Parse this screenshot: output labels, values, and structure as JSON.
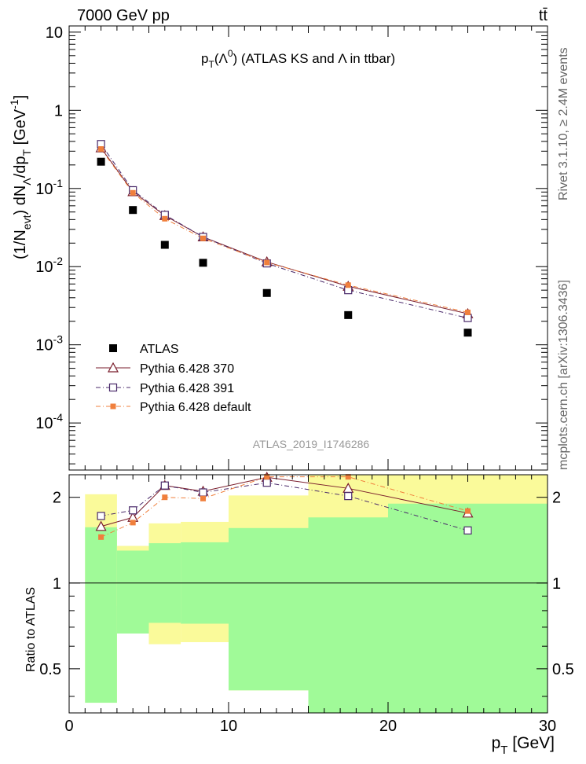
{
  "header": {
    "energy_label": "7000 GeV pp",
    "process_label": "tt̄",
    "title_main": "p",
    "title_sub": "T",
    "title_rest_a": "(Λ",
    "title_sup": "0",
    "title_rest_b": ") (ATLAS KS and Λ in ttbar)",
    "analysis_id": "ATLAS_2019_I1746286",
    "side_rivet": "Rivet 3.1.10, ≥ 2.4M events",
    "side_mcplots": "mcplots.cern.ch [arXiv:1306.3436]"
  },
  "axes": {
    "ylabel_upper_parts": [
      "(1/N",
      "evt",
      ") dN",
      "Λ",
      "/dp",
      "T",
      " [GeV",
      "-1",
      "]"
    ],
    "ylabel_lower": "Ratio to ATLAS",
    "xlabel_main": "p",
    "xlabel_sub": "T",
    "xlabel_unit": " [GeV]"
  },
  "chart_data": {
    "type": "scatter",
    "x_range": [
      0,
      30
    ],
    "x_ticks": [
      0,
      10,
      20,
      30
    ],
    "upper_y_scale": "log",
    "upper_y_range": [
      2.5e-05,
      12
    ],
    "upper_y_ticks": [
      {
        "value": 10,
        "label_base": "10",
        "label_exp": ""
      },
      {
        "value": 1,
        "label_base": "1",
        "label_exp": ""
      },
      {
        "value": 0.1,
        "label_base": "10",
        "label_exp": "-1"
      },
      {
        "value": 0.01,
        "label_base": "10",
        "label_exp": "-2"
      },
      {
        "value": 0.001,
        "label_base": "10",
        "label_exp": "-3"
      },
      {
        "value": 0.0001,
        "label_base": "10",
        "label_exp": "-4"
      }
    ],
    "lower_y_scale": "log",
    "lower_y_range": [
      0.35,
      2.4
    ],
    "lower_y_ticks": [
      {
        "value": 0.5,
        "label": "0.5"
      },
      {
        "value": 1,
        "label": "1"
      },
      {
        "value": 2,
        "label": "2"
      }
    ],
    "x": [
      2,
      4,
      6,
      8.4,
      12.4,
      17.5,
      25
    ],
    "bin_edges": [
      1,
      3,
      5,
      7,
      10,
      15,
      20,
      30
    ],
    "series": [
      {
        "name": "ATLAS",
        "style": "data",
        "color": "#000000",
        "values": [
          0.22,
          0.053,
          0.019,
          0.0112,
          0.0046,
          0.0024,
          0.00143
        ]
      },
      {
        "name": "Pythia 6.428 370",
        "style": "triangle-solid",
        "color": "#7a1e2c",
        "values": [
          0.33,
          0.091,
          0.045,
          0.024,
          0.0115,
          0.0056,
          0.0025
        ],
        "ratio": [
          1.58,
          1.7,
          2.2,
          2.1,
          2.35,
          2.15,
          1.76
        ]
      },
      {
        "name": "Pythia 6.428 391",
        "style": "open-square-dashdot",
        "color": "#4a2a6a",
        "values": [
          0.37,
          0.095,
          0.046,
          0.024,
          0.011,
          0.005,
          0.0022
        ],
        "ratio": [
          1.72,
          1.8,
          2.2,
          2.08,
          2.25,
          2.02,
          1.53
        ]
      },
      {
        "name": "Pythia 6.428 default",
        "style": "filled-square-dashdot",
        "color": "#f07f3c",
        "values": [
          0.32,
          0.088,
          0.041,
          0.023,
          0.0113,
          0.0058,
          0.0026
        ],
        "ratio": [
          1.45,
          1.63,
          2.0,
          1.98,
          2.36,
          2.36,
          1.79
        ]
      }
    ],
    "uncertainty_bands": {
      "stat_color": "#a0fa98",
      "syst_color": "#fafa9a",
      "green_lo": [
        0.38,
        0.665,
        0.725,
        0.72,
        0.42,
        0.35,
        0.35
      ],
      "green_hi": [
        1.57,
        1.3,
        1.38,
        1.39,
        1.56,
        1.7,
        1.9
      ],
      "yellow_lo": [
        0.38,
        0.83,
        0.61,
        0.62,
        0.42,
        0.35,
        0.35
      ],
      "yellow_hi": [
        2.05,
        1.35,
        1.62,
        1.64,
        2.03,
        2.6,
        2.6
      ]
    }
  }
}
